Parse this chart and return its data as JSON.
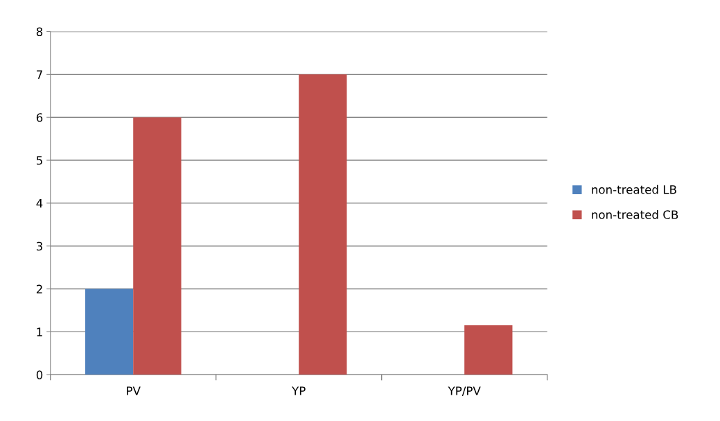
{
  "chart_data": {
    "type": "bar",
    "categories": [
      "PV",
      "YP",
      "YP/PV"
    ],
    "series": [
      {
        "name": "non-treated LB",
        "color": "#4f81bd",
        "values": [
          2,
          null,
          null
        ]
      },
      {
        "name": "non-treated CB",
        "color": "#c0504d",
        "values": [
          6,
          7,
          1.15
        ]
      }
    ],
    "ylim": [
      0,
      8
    ],
    "yticks": [
      0,
      1,
      2,
      3,
      4,
      5,
      6,
      7,
      8
    ],
    "grid": "y",
    "legend": "right"
  }
}
